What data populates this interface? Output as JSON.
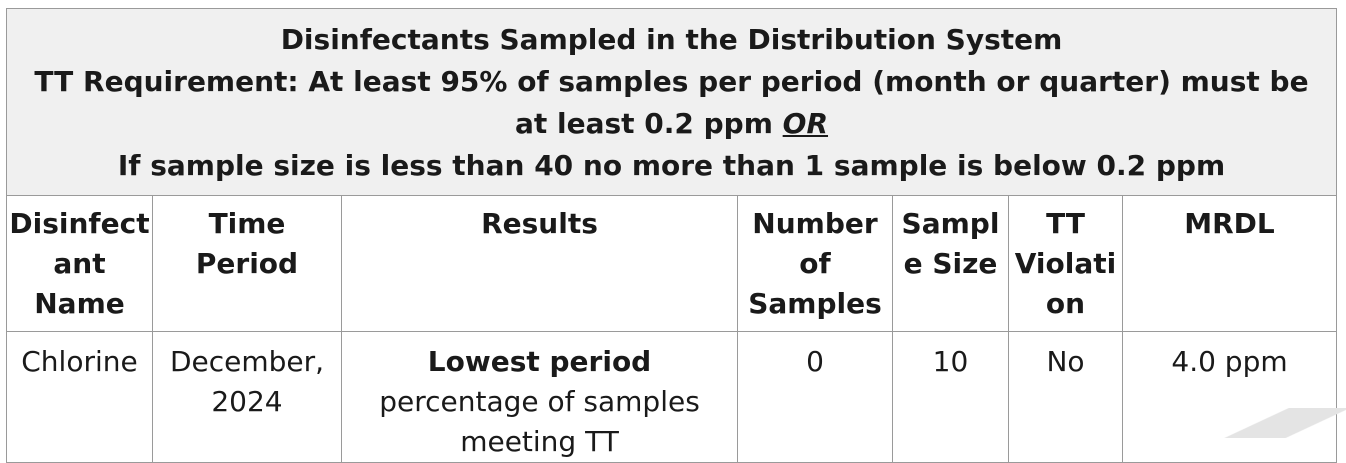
{
  "banner": {
    "line1": "Disinfectants Sampled in the Distribution System",
    "line2a": "TT Requirement: At least 95% of samples per period (month or quarter) must be at least 0.2 ppm ",
    "line2b": "OR",
    "line3": "If sample size is less than 40 no more than 1 sample is below 0.2 ppm"
  },
  "headers": {
    "disinfectant_a": "Disinfect",
    "disinfectant_b": "ant",
    "disinfectant_c": "Name",
    "period_a": "Time",
    "period_b": "Period",
    "results": "Results",
    "number_a": "Number",
    "number_b": "of",
    "number_c": "Samples",
    "size_a": "Sampl",
    "size_b": "e Size",
    "tt_a": "TT",
    "tt_b": "Violati",
    "tt_c": "on",
    "mrdl": "MRDL"
  },
  "row": {
    "name": "Chlorine",
    "period_a": "December,",
    "period_b": "2024",
    "results_bold": "Lowest period",
    "results_rest": " percentage of samples meeting TT",
    "number": "0",
    "size": "10",
    "violation": "No",
    "mrdl": "4.0 ppm"
  }
}
